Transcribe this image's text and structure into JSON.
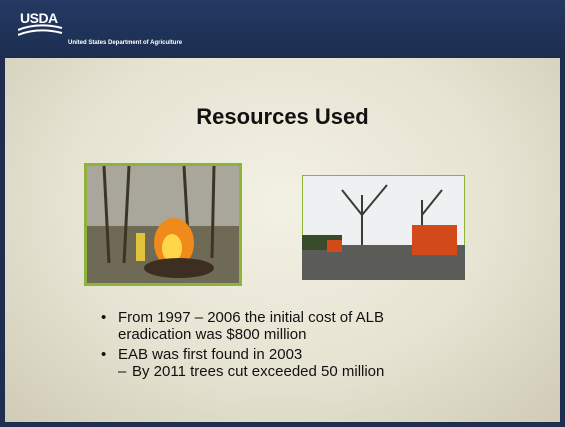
{
  "header": {
    "logo": "USDA",
    "agency": "United States Department of Agriculture"
  },
  "title": "Resources Used",
  "bullets": [
    {
      "text": "From 1997 – 2006 the initial cost of ALB eradication was $800 million"
    },
    {
      "text": "EAB was first found in 2003",
      "sub": "By 2011 trees cut exceeded 50 million"
    }
  ]
}
